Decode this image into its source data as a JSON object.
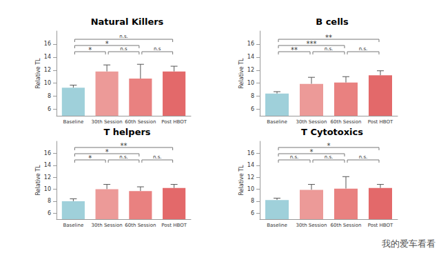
{
  "chart_data": [
    {
      "type": "bar",
      "title": "Natural Killers",
      "ylabel": "Relative TL",
      "categories": [
        "Baseline",
        "30th Session",
        "60th Session",
        "Post HBOT"
      ],
      "values": [
        9.3,
        11.8,
        10.7,
        11.8
      ],
      "errors": [
        0.4,
        1.0,
        2.2,
        0.8
      ],
      "colors": [
        "#9fd0da",
        "#ec9a98",
        "#e98180",
        "#e3696a"
      ],
      "ylim": [
        5,
        18
      ],
      "yticks": [
        6,
        8,
        10,
        12,
        14,
        16
      ],
      "grid": false,
      "annotations": [
        {
          "from": "Baseline",
          "to": "30th Session",
          "label": "*"
        },
        {
          "from": "30th Session",
          "to": "60th Session",
          "label": "n.s"
        },
        {
          "from": "60th Session",
          "to": "Post HBOT",
          "label": "n.s"
        },
        {
          "from": "Baseline",
          "to": "60th Session",
          "label": "*"
        },
        {
          "from": "Baseline",
          "to": "Post HBOT",
          "label": "n.s."
        }
      ]
    },
    {
      "type": "bar",
      "title": "B cells",
      "ylabel": "Relative TL",
      "categories": [
        "Baseline",
        "30th Session",
        "60th Session",
        "Post HBOT"
      ],
      "values": [
        8.4,
        9.9,
        10.1,
        11.2
      ],
      "errors": [
        0.3,
        1.0,
        0.9,
        0.7
      ],
      "colors": [
        "#9fd0da",
        "#ec9a98",
        "#e98180",
        "#e3696a"
      ],
      "ylim": [
        5,
        18
      ],
      "yticks": [
        6,
        8,
        10,
        12,
        14,
        16
      ],
      "grid": false,
      "annotations": [
        {
          "from": "Baseline",
          "to": "30th Session",
          "label": "**"
        },
        {
          "from": "30th Session",
          "to": "60th Session",
          "label": "n.s."
        },
        {
          "from": "60th Session",
          "to": "Post HBOT",
          "label": "n.s."
        },
        {
          "from": "Baseline",
          "to": "60th Session",
          "label": "***"
        },
        {
          "from": "Baseline",
          "to": "Post HBOT",
          "label": "**"
        }
      ]
    },
    {
      "type": "bar",
      "title": "T helpers",
      "ylabel": "Relative TL",
      "categories": [
        "Baseline",
        "30th Session",
        "60th Session",
        "Post HBOT"
      ],
      "values": [
        8.0,
        10.0,
        9.7,
        10.2
      ],
      "errors": [
        0.4,
        0.8,
        0.7,
        0.6
      ],
      "colors": [
        "#9fd0da",
        "#ec9a98",
        "#e98180",
        "#e3696a"
      ],
      "ylim": [
        5,
        18
      ],
      "yticks": [
        6,
        8,
        10,
        12,
        14,
        16
      ],
      "grid": false,
      "annotations": [
        {
          "from": "Baseline",
          "to": "30th Session",
          "label": "*"
        },
        {
          "from": "30th Session",
          "to": "60th Session",
          "label": "n.s."
        },
        {
          "from": "60th Session",
          "to": "Post HBOT",
          "label": "n.s."
        },
        {
          "from": "Baseline",
          "to": "60th Session",
          "label": "*"
        },
        {
          "from": "Baseline",
          "to": "Post HBOT",
          "label": "**"
        }
      ]
    },
    {
      "type": "bar",
      "title": "T Cytotoxics",
      "ylabel": "Relative TL",
      "categories": [
        "Baseline",
        "30th Session",
        "60th Session",
        "Post HBOT"
      ],
      "values": [
        8.2,
        9.9,
        10.1,
        10.2
      ],
      "errors": [
        0.3,
        0.9,
        2.0,
        0.6
      ],
      "colors": [
        "#9fd0da",
        "#ec9a98",
        "#e98180",
        "#e3696a"
      ],
      "ylim": [
        5,
        18
      ],
      "yticks": [
        6,
        8,
        10,
        12,
        14,
        16
      ],
      "grid": false,
      "annotations": [
        {
          "from": "Baseline",
          "to": "30th Session",
          "label": "n.s."
        },
        {
          "from": "30th Session",
          "to": "60th Session",
          "label": "n.s."
        },
        {
          "from": "60th Session",
          "to": "Post HBOT",
          "label": "n.s."
        },
        {
          "from": "Baseline",
          "to": "60th Session",
          "label": "*"
        },
        {
          "from": "Baseline",
          "to": "Post HBOT",
          "label": "*"
        }
      ]
    }
  ],
  "watermark": "我的爱车看看"
}
